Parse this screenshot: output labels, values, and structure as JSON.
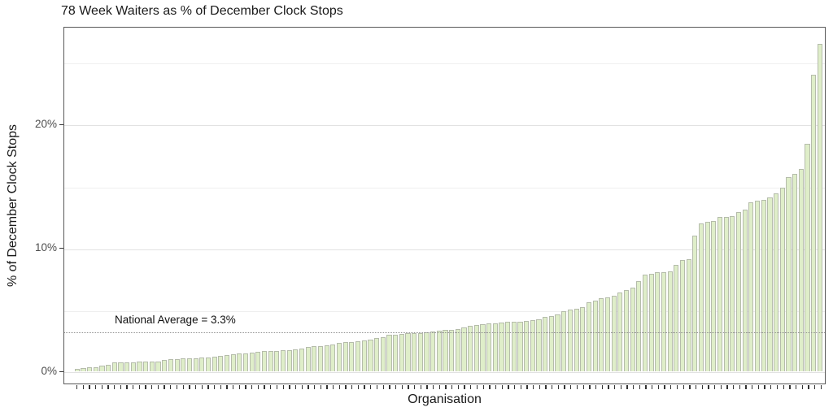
{
  "chart": {
    "title": "78 Week Waiters as % of December Clock Stops",
    "ylabel": "% of December Clock Stops",
    "xlabel": "Organisation",
    "annotation": "National Average = 3.3%",
    "colors": {
      "bar_fill": "#dfeec9",
      "bar_border": "#b5bcab",
      "panel_border": "#595959",
      "grid_major": "#e2e2e2",
      "grid_minor": "#efefef",
      "avg_line": "#8f8f8f",
      "tick_label": "#4d4d4d"
    }
  },
  "chart_data": {
    "type": "bar",
    "title": "78 Week Waiters as % of December Clock Stops",
    "xlabel": "Organisation",
    "ylabel": "% of December Clock Stops",
    "ylim": [
      0,
      27.9
    ],
    "ytick_values": [
      0,
      10,
      20
    ],
    "ytick_labels": [
      "0%",
      "10%",
      "20%"
    ],
    "grid": true,
    "legend": false,
    "national_average": 3.3,
    "annotation": "National Average = 3.3%",
    "series_note": "one bar per organisation, organisation names not labelled, sorted ascending",
    "values": [
      0.2,
      0.25,
      0.3,
      0.3,
      0.45,
      0.55,
      0.7,
      0.73,
      0.75,
      0.75,
      0.77,
      0.8,
      0.82,
      0.82,
      0.93,
      1.0,
      1.02,
      1.04,
      1.06,
      1.08,
      1.13,
      1.15,
      1.21,
      1.26,
      1.3,
      1.37,
      1.43,
      1.48,
      1.52,
      1.59,
      1.63,
      1.67,
      1.67,
      1.72,
      1.74,
      1.76,
      1.85,
      1.98,
      2.02,
      2.07,
      2.13,
      2.18,
      2.28,
      2.35,
      2.39,
      2.46,
      2.51,
      2.57,
      2.68,
      2.79,
      2.94,
      2.95,
      3.0,
      3.07,
      3.11,
      3.11,
      3.16,
      3.2,
      3.29,
      3.33,
      3.38,
      3.44,
      3.55,
      3.66,
      3.77,
      3.82,
      3.88,
      3.88,
      3.95,
      3.99,
      3.99,
      4.03,
      4.1,
      4.14,
      4.21,
      4.38,
      4.47,
      4.6,
      4.9,
      5.0,
      5.1,
      5.2,
      5.6,
      5.7,
      5.9,
      6.0,
      6.1,
      6.4,
      6.6,
      6.8,
      7.3,
      7.8,
      7.9,
      8.0,
      8.0,
      8.1,
      8.6,
      9.0,
      9.1,
      11.0,
      12.0,
      12.1,
      12.2,
      12.5,
      12.5,
      12.6,
      12.9,
      13.1,
      13.7,
      13.8,
      13.9,
      14.1,
      14.4,
      14.9,
      15.7,
      16.0,
      16.4,
      18.4,
      24.0,
      26.5
    ]
  }
}
